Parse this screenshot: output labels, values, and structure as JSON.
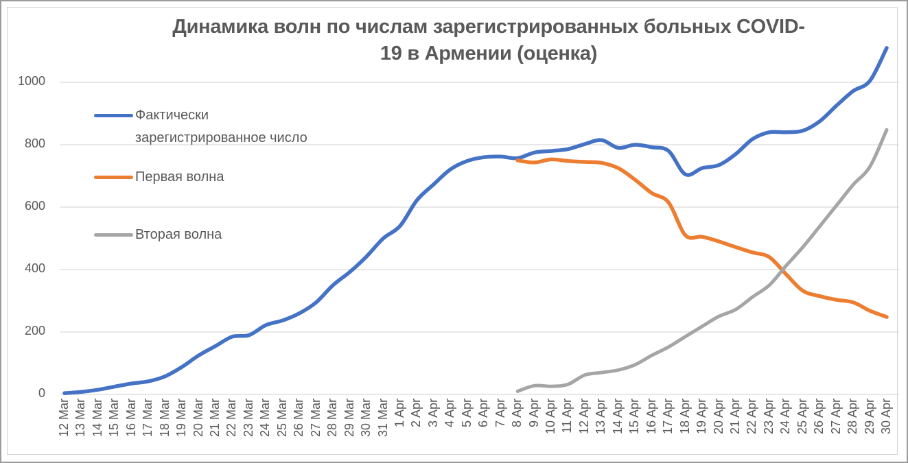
{
  "chart_data": {
    "type": "line",
    "title": "Динамика волн по числам зарегистрированных больных COVID-19 в Армении (оценка)",
    "title_lines": [
      "Динамика волн по числам зарегистрированных больных COVID-",
      "19 в Армении (оценка)"
    ],
    "xlabel": "",
    "ylabel": "",
    "ylim": [
      0,
      1200
    ],
    "y_ticks": [
      0,
      200,
      400,
      600,
      800,
      1000
    ],
    "grid": "horizontal",
    "smoothed_lines": true,
    "legend_position": "inside-top-left",
    "categories": [
      "12 Mar",
      "13 Mar",
      "14 Mar",
      "15 Mar",
      "16 Mar",
      "17 Mar",
      "18 Mar",
      "19 Mar",
      "20 Mar",
      "21 Mar",
      "22 Mar",
      "23 Mar",
      "24 Mar",
      "25 Mar",
      "26 Mar",
      "27 Mar",
      "28 Mar",
      "29 Mar",
      "30 Mar",
      "31 Mar",
      "1 Apr",
      "2 Apr",
      "3 Apr",
      "4 Apr",
      "5 Apr",
      "6 Apr",
      "7 Apr",
      "8 Apr",
      "9 Apr",
      "10 Apr",
      "11 Apr",
      "12 Apr",
      "13 Apr",
      "14 Apr",
      "15 Apr",
      "16 Apr",
      "17 Apr",
      "18 Apr",
      "19 Apr",
      "20 Apr",
      "21 Apr",
      "22 Apr",
      "23 Apr",
      "24 Apr",
      "25 Apr",
      "26 Apr",
      "27 Apr",
      "28 Apr",
      "29 Apr",
      "30 Apr"
    ],
    "series": [
      {
        "name": "Фактически зарегистрированное число",
        "color": "#4472C4",
        "stroke_width": 5.5,
        "values": [
          4,
          8,
          15,
          25,
          35,
          42,
          58,
          88,
          125,
          155,
          185,
          190,
          222,
          237,
          260,
          295,
          350,
          392,
          442,
          500,
          540,
          622,
          673,
          721,
          748,
          760,
          762,
          757,
          775,
          780,
          786,
          802,
          815,
          790,
          800,
          792,
          780,
          705,
          725,
          735,
          770,
          818,
          840,
          840,
          845,
          875,
          925,
          972,
          1005,
          1110
        ]
      },
      {
        "name": "Первая волна",
        "color": "#ED7D31",
        "stroke_width": 5.5,
        "values": [
          null,
          null,
          null,
          null,
          null,
          null,
          null,
          null,
          null,
          null,
          null,
          null,
          null,
          null,
          null,
          null,
          null,
          null,
          null,
          null,
          null,
          null,
          null,
          null,
          null,
          null,
          null,
          750,
          743,
          753,
          748,
          745,
          742,
          725,
          688,
          645,
          615,
          510,
          505,
          490,
          472,
          455,
          440,
          385,
          332,
          315,
          303,
          295,
          268,
          248
        ]
      },
      {
        "name": "Вторая волна",
        "color": "#A5A5A5",
        "stroke_width": 5,
        "values": [
          null,
          null,
          null,
          null,
          null,
          null,
          null,
          null,
          null,
          null,
          null,
          null,
          null,
          null,
          null,
          null,
          null,
          null,
          null,
          null,
          null,
          null,
          null,
          null,
          null,
          null,
          null,
          10,
          28,
          26,
          32,
          62,
          70,
          78,
          95,
          125,
          152,
          185,
          218,
          250,
          272,
          312,
          350,
          412,
          472,
          538,
          605,
          672,
          730,
          848
        ]
      }
    ],
    "colors": {
      "gridline": "#D9D9D9",
      "axis_text": "#595959",
      "title_text": "#595959",
      "background": "#FFFFFF"
    }
  }
}
